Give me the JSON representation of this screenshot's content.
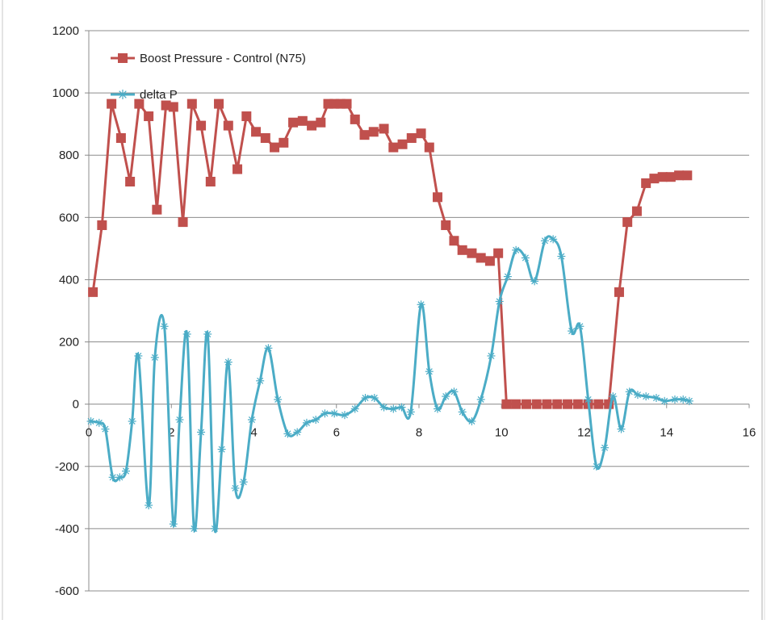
{
  "chart_data": {
    "type": "scatter",
    "xlim": [
      0,
      16
    ],
    "ylim": [
      -600,
      1200
    ],
    "x_ticks": [
      0,
      2,
      4,
      6,
      8,
      10,
      12,
      14,
      16
    ],
    "y_ticks": [
      -600,
      -400,
      -200,
      0,
      200,
      400,
      600,
      800,
      1000,
      1200
    ],
    "x_tick_labels": [
      "0",
      "2",
      "4",
      "6",
      "8",
      "10",
      "12",
      "14",
      "16"
    ],
    "y_tick_labels": [
      "-600",
      "-400",
      "-200",
      "0",
      "200",
      "400",
      "600",
      "800",
      "1000",
      "1200"
    ],
    "grid": "horizontal",
    "legend_position": "top-left",
    "series": [
      {
        "name": "Boost Pressure - Control (N75)",
        "color": "#c0504d",
        "marker": "square",
        "smooth": false,
        "x": [
          0.1,
          0.32,
          0.55,
          0.78,
          1.0,
          1.22,
          1.45,
          1.65,
          1.87,
          2.05,
          2.28,
          2.5,
          2.72,
          2.95,
          3.15,
          3.38,
          3.6,
          3.82,
          4.05,
          4.28,
          4.5,
          4.72,
          4.95,
          5.18,
          5.4,
          5.62,
          5.8,
          5.95,
          6.1,
          6.25,
          6.45,
          6.68,
          6.9,
          7.15,
          7.38,
          7.6,
          7.82,
          8.05,
          8.25,
          8.45,
          8.65,
          8.85,
          9.05,
          9.28,
          9.5,
          9.72,
          9.92,
          10.12,
          10.35,
          10.6,
          10.85,
          11.1,
          11.35,
          11.6,
          11.85,
          12.1,
          12.35,
          12.6,
          12.85,
          13.05,
          13.28,
          13.5,
          13.7,
          13.9,
          14.1,
          14.3,
          14.5
        ],
        "y": [
          360,
          575,
          965,
          855,
          715,
          965,
          925,
          625,
          960,
          955,
          585,
          965,
          895,
          715,
          965,
          895,
          755,
          925,
          875,
          855,
          825,
          840,
          905,
          910,
          895,
          905,
          965,
          965,
          965,
          965,
          915,
          865,
          875,
          885,
          825,
          835,
          855,
          870,
          825,
          665,
          575,
          525,
          495,
          485,
          470,
          460,
          485,
          0,
          0,
          0,
          0,
          0,
          0,
          0,
          0,
          0,
          0,
          0,
          360,
          585,
          620,
          710,
          725,
          730,
          730,
          735,
          735
        ]
      },
      {
        "name": "delta P",
        "color": "#4bacc6",
        "marker": "asterisk",
        "smooth": true,
        "x": [
          0.05,
          0.25,
          0.4,
          0.58,
          0.75,
          0.9,
          1.05,
          1.2,
          1.45,
          1.6,
          1.83,
          2.05,
          2.2,
          2.38,
          2.55,
          2.72,
          2.88,
          3.05,
          3.22,
          3.38,
          3.55,
          3.75,
          3.95,
          4.15,
          4.35,
          4.58,
          4.82,
          5.05,
          5.28,
          5.5,
          5.72,
          5.95,
          6.2,
          6.45,
          6.7,
          6.92,
          7.15,
          7.38,
          7.58,
          7.8,
          8.05,
          8.25,
          8.45,
          8.65,
          8.85,
          9.05,
          9.28,
          9.5,
          9.75,
          9.95,
          10.15,
          10.35,
          10.58,
          10.8,
          11.05,
          11.25,
          11.45,
          11.7,
          11.9,
          12.1,
          12.3,
          12.5,
          12.7,
          12.9,
          13.1,
          13.3,
          13.5,
          13.75,
          13.95,
          14.2,
          14.4,
          14.55
        ],
        "y": [
          -55,
          -60,
          -80,
          -235,
          -235,
          -215,
          -55,
          155,
          -325,
          150,
          250,
          -385,
          -50,
          225,
          -400,
          -90,
          225,
          -400,
          -145,
          135,
          -270,
          -250,
          -50,
          75,
          180,
          15,
          -95,
          -90,
          -60,
          -50,
          -30,
          -30,
          -35,
          -15,
          20,
          20,
          -10,
          -15,
          -10,
          -25,
          320,
          105,
          -15,
          25,
          40,
          -25,
          -55,
          15,
          155,
          330,
          410,
          495,
          470,
          395,
          525,
          530,
          475,
          235,
          250,
          15,
          -200,
          -140,
          25,
          -80,
          40,
          30,
          25,
          20,
          10,
          15,
          15,
          10
        ]
      }
    ]
  }
}
